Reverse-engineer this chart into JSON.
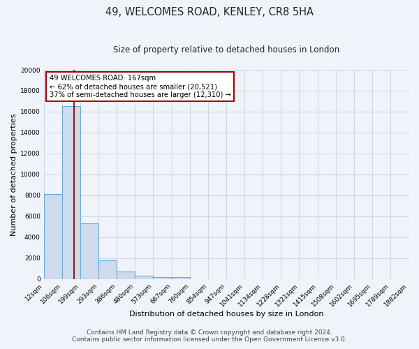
{
  "title": "49, WELCOMES ROAD, KENLEY, CR8 5HA",
  "subtitle": "Size of property relative to detached houses in London",
  "xlabel": "Distribution of detached houses by size in London",
  "ylabel": "Number of detached properties",
  "bar_left_edges": [
    12,
    106,
    199,
    293,
    386,
    480,
    573,
    667,
    760,
    854,
    947,
    1041,
    1134,
    1228,
    1321,
    1415,
    1508,
    1602,
    1695,
    1789
  ],
  "bar_heights": [
    8100,
    16500,
    5300,
    1800,
    700,
    300,
    200,
    200,
    0,
    0,
    0,
    0,
    0,
    0,
    0,
    0,
    0,
    0,
    0,
    0
  ],
  "bin_width": 93,
  "tick_labels": [
    "12sqm",
    "106sqm",
    "199sqm",
    "293sqm",
    "386sqm",
    "480sqm",
    "573sqm",
    "667sqm",
    "760sqm",
    "854sqm",
    "947sqm",
    "1041sqm",
    "1134sqm",
    "1228sqm",
    "1321sqm",
    "1415sqm",
    "1508sqm",
    "1602sqm",
    "1695sqm",
    "1789sqm",
    "1882sqm"
  ],
  "bar_color": "#ccdcec",
  "bar_edge_color": "#6aaad4",
  "vline_x": 167,
  "vline_color": "#9b0000",
  "annotation_title": "49 WELCOMES ROAD: 167sqm",
  "annotation_line1": "← 62% of detached houses are smaller (20,521)",
  "annotation_line2": "37% of semi-detached houses are larger (12,310) →",
  "annotation_box_color": "#ffffff",
  "annotation_box_edge_color": "#aa0000",
  "ylim": [
    0,
    20000
  ],
  "yticks": [
    0,
    2000,
    4000,
    6000,
    8000,
    10000,
    12000,
    14000,
    16000,
    18000,
    20000
  ],
  "footer1": "Contains HM Land Registry data © Crown copyright and database right 2024.",
  "footer2": "Contains public sector information licensed under the Open Government Licence v3.0.",
  "fig_background_color": "#f0f4fa",
  "plot_background_color": "#f0f4fa",
  "grid_color": "#d0d8e4",
  "title_fontsize": 10.5,
  "subtitle_fontsize": 8.5,
  "axis_label_fontsize": 8,
  "tick_fontsize": 6.5,
  "footer_fontsize": 6.5
}
